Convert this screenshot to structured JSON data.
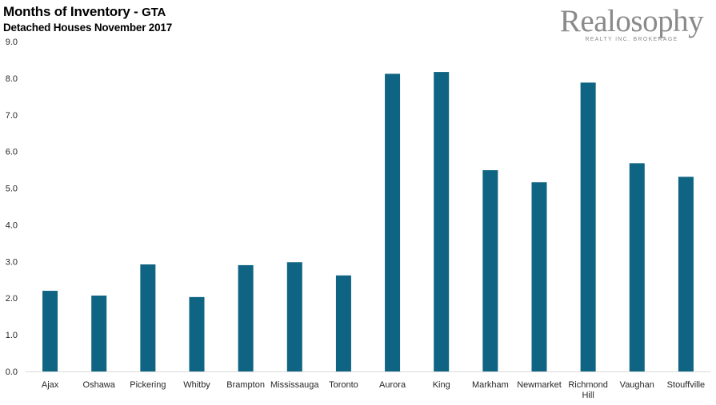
{
  "header": {
    "title_main": "Months of Inventory - ",
    "title_suffix": "GTA",
    "subtitle": "Detached Houses November 2017"
  },
  "logo": {
    "name": "Realosophy",
    "tagline": "REALTY INC. BROKERAGE"
  },
  "colors": {
    "bar": "#0e6482",
    "axis": "#d9d9d9"
  },
  "chart_data": {
    "type": "bar",
    "title": "Months of Inventory - GTA",
    "subtitle": "Detached Houses November 2017",
    "xlabel": "",
    "ylabel": "",
    "ylim": [
      0,
      9
    ],
    "yticks": [
      "0.0",
      "1.0",
      "2.0",
      "3.0",
      "4.0",
      "5.0",
      "6.0",
      "7.0",
      "8.0",
      "9.0"
    ],
    "grid": false,
    "categories": [
      "Ajax",
      "Oshawa",
      "Pickering",
      "Whitby",
      "Brampton",
      "Mississauga",
      "Toronto",
      "Aurora",
      "King",
      "Markham",
      "Newmarket",
      "Richmond Hill",
      "Vaughan",
      "Stouffville"
    ],
    "values": [
      2.2,
      2.07,
      2.92,
      2.03,
      2.9,
      2.98,
      2.62,
      8.12,
      8.17,
      5.49,
      5.16,
      7.88,
      5.68,
      5.31
    ]
  }
}
